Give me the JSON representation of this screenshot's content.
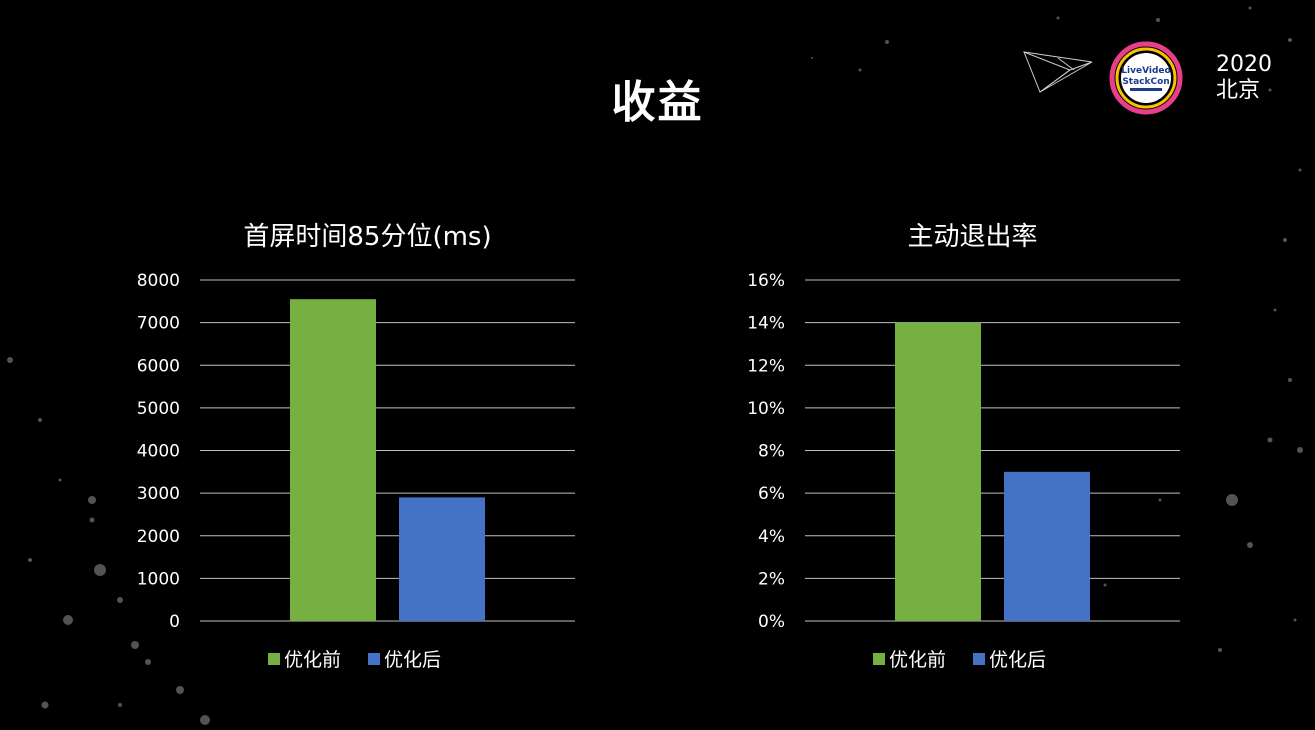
{
  "slide": {
    "title": "收益",
    "event": {
      "logo_line1": "LiveVideo",
      "logo_line2": "StackCon",
      "year": "2020",
      "city": "北京"
    }
  },
  "colors": {
    "before": "#76b041",
    "after": "#4472c4",
    "grid": "#bfbfbf",
    "background": "#000000"
  },
  "chart_data": [
    {
      "type": "bar",
      "title": "首屏时间85分位(ms)",
      "categories": [
        ""
      ],
      "series": [
        {
          "name": "优化前",
          "values": [
            7550
          ]
        },
        {
          "name": "优化后",
          "values": [
            2900
          ]
        }
      ],
      "ylim": [
        0,
        8000
      ],
      "yticks": [
        0,
        1000,
        2000,
        3000,
        4000,
        5000,
        6000,
        7000,
        8000
      ],
      "ytick_labels": [
        "0",
        "1000",
        "2000",
        "3000",
        "4000",
        "5000",
        "6000",
        "7000",
        "8000"
      ],
      "grid": true,
      "legend_position": "bottom"
    },
    {
      "type": "bar",
      "title": "主动退出率",
      "categories": [
        ""
      ],
      "series": [
        {
          "name": "优化前",
          "values": [
            14
          ]
        },
        {
          "name": "优化后",
          "values": [
            7
          ]
        }
      ],
      "ylim": [
        0,
        16
      ],
      "yticks": [
        0,
        2,
        4,
        6,
        8,
        10,
        12,
        14,
        16
      ],
      "ytick_labels": [
        "0%",
        "2%",
        "4%",
        "6%",
        "8%",
        "10%",
        "12%",
        "14%",
        "16%"
      ],
      "grid": true,
      "legend_position": "bottom"
    }
  ]
}
